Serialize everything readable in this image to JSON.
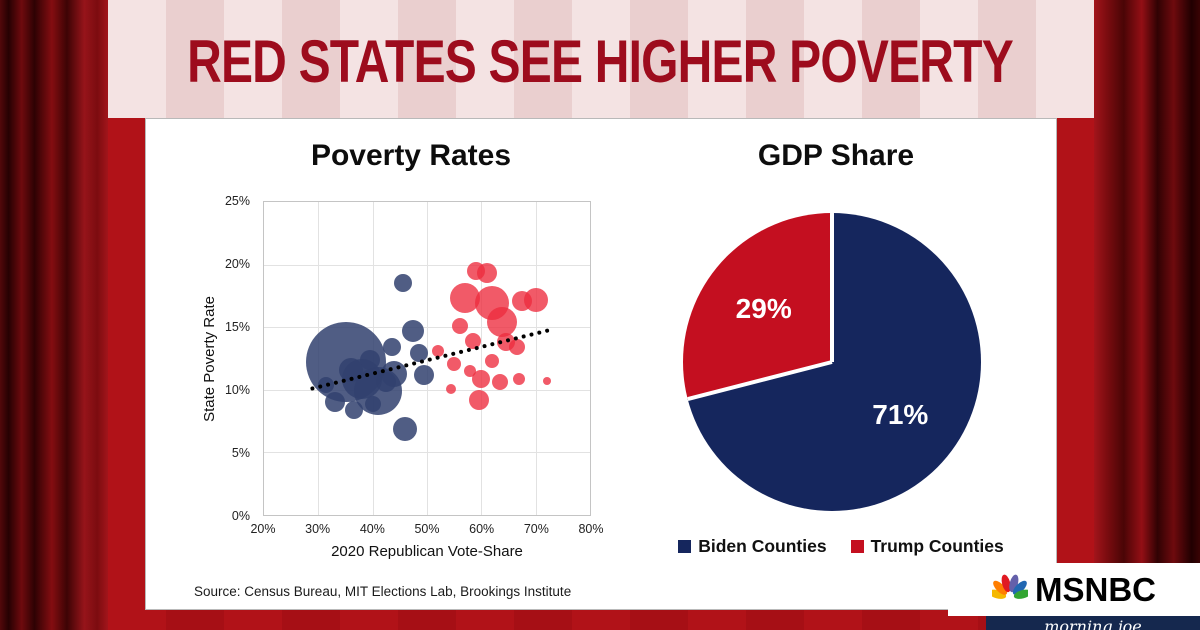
{
  "header": {
    "title": "RED STATES SEE HIGHER POVERTY"
  },
  "source": "Source: Census Bureau, MIT Elections Lab, Brookings Institute",
  "branding": {
    "network": "MSNBC",
    "show": "morning joe"
  },
  "colors": {
    "headline": "#9d0c1d",
    "card_bg": "#ffffff",
    "blue_states": "#31416f",
    "red_states": "#ed2b3e",
    "pie_navy": "#15265d",
    "pie_red": "#c40f20"
  },
  "chart_data": [
    {
      "type": "scatter",
      "title": "Poverty Rates",
      "xlabel": "2020 Republican Vote-Share",
      "ylabel": "State Poverty Rate",
      "xlim": [
        20,
        80
      ],
      "ylim": [
        0,
        25
      ],
      "x_ticks": [
        20,
        30,
        40,
        50,
        60,
        70,
        80
      ],
      "y_ticks": [
        0,
        5,
        10,
        15,
        20,
        25
      ],
      "tick_suffix": "%",
      "grid": true,
      "trend": {
        "style": "dotted",
        "color": "#000000",
        "x1": 28.5,
        "y1": 10.2,
        "x2": 72.5,
        "y2": 14.9
      },
      "series": [
        {
          "name": "blue-states",
          "color": "#31416f",
          "opacity": 0.85,
          "points": [
            [
              35,
              12.2,
              40
            ],
            [
              31.5,
              10.4,
              8
            ],
            [
              33,
              9.0,
              10
            ],
            [
              36.5,
              8.4,
              9
            ],
            [
              38,
              10.9,
              20
            ],
            [
              40,
              8.9,
              8
            ],
            [
              41,
              9.9,
              24
            ],
            [
              43.5,
              13.4,
              9
            ],
            [
              44,
              11.3,
              13
            ],
            [
              45.5,
              18.5,
              9
            ],
            [
              47.5,
              14.7,
              11
            ],
            [
              48.5,
              12.9,
              9
            ],
            [
              49.5,
              11.2,
              10
            ],
            [
              46,
              6.9,
              12
            ],
            [
              36,
              11.6,
              12
            ],
            [
              39.5,
              12.4,
              10
            ],
            [
              42.5,
              10.6,
              10
            ]
          ]
        },
        {
          "name": "red-states",
          "color": "#ed2b3e",
          "opacity": 0.78,
          "points": [
            [
              52,
              13.1,
              6
            ],
            [
              54.5,
              10.1,
              5
            ],
            [
              55,
              12.1,
              7
            ],
            [
              56,
              15.1,
              8
            ],
            [
              57,
              17.3,
              15
            ],
            [
              58.5,
              13.9,
              8
            ],
            [
              59,
              19.5,
              9
            ],
            [
              61,
              19.3,
              10
            ],
            [
              62,
              16.9,
              17
            ],
            [
              63.8,
              15.4,
              15
            ],
            [
              67.5,
              17.1,
              10
            ],
            [
              70,
              17.2,
              12
            ],
            [
              64.5,
              13.8,
              9
            ],
            [
              66.5,
              13.4,
              8
            ],
            [
              60,
              10.9,
              9
            ],
            [
              59.5,
              9.2,
              10
            ],
            [
              63.5,
              10.6,
              8
            ],
            [
              67,
              10.9,
              6
            ],
            [
              72,
              10.7,
              4
            ],
            [
              62,
              12.3,
              7
            ],
            [
              58,
              11.5,
              6
            ]
          ]
        }
      ]
    },
    {
      "type": "pie",
      "title": "GDP Share",
      "value_suffix": "%",
      "label_color": "#ffffff",
      "legend_position": "bottom",
      "slices": [
        {
          "label": "Biden Counties",
          "value": 71,
          "color": "#15265d"
        },
        {
          "label": "Trump Counties",
          "value": 29,
          "color": "#c40f20"
        }
      ]
    }
  ]
}
